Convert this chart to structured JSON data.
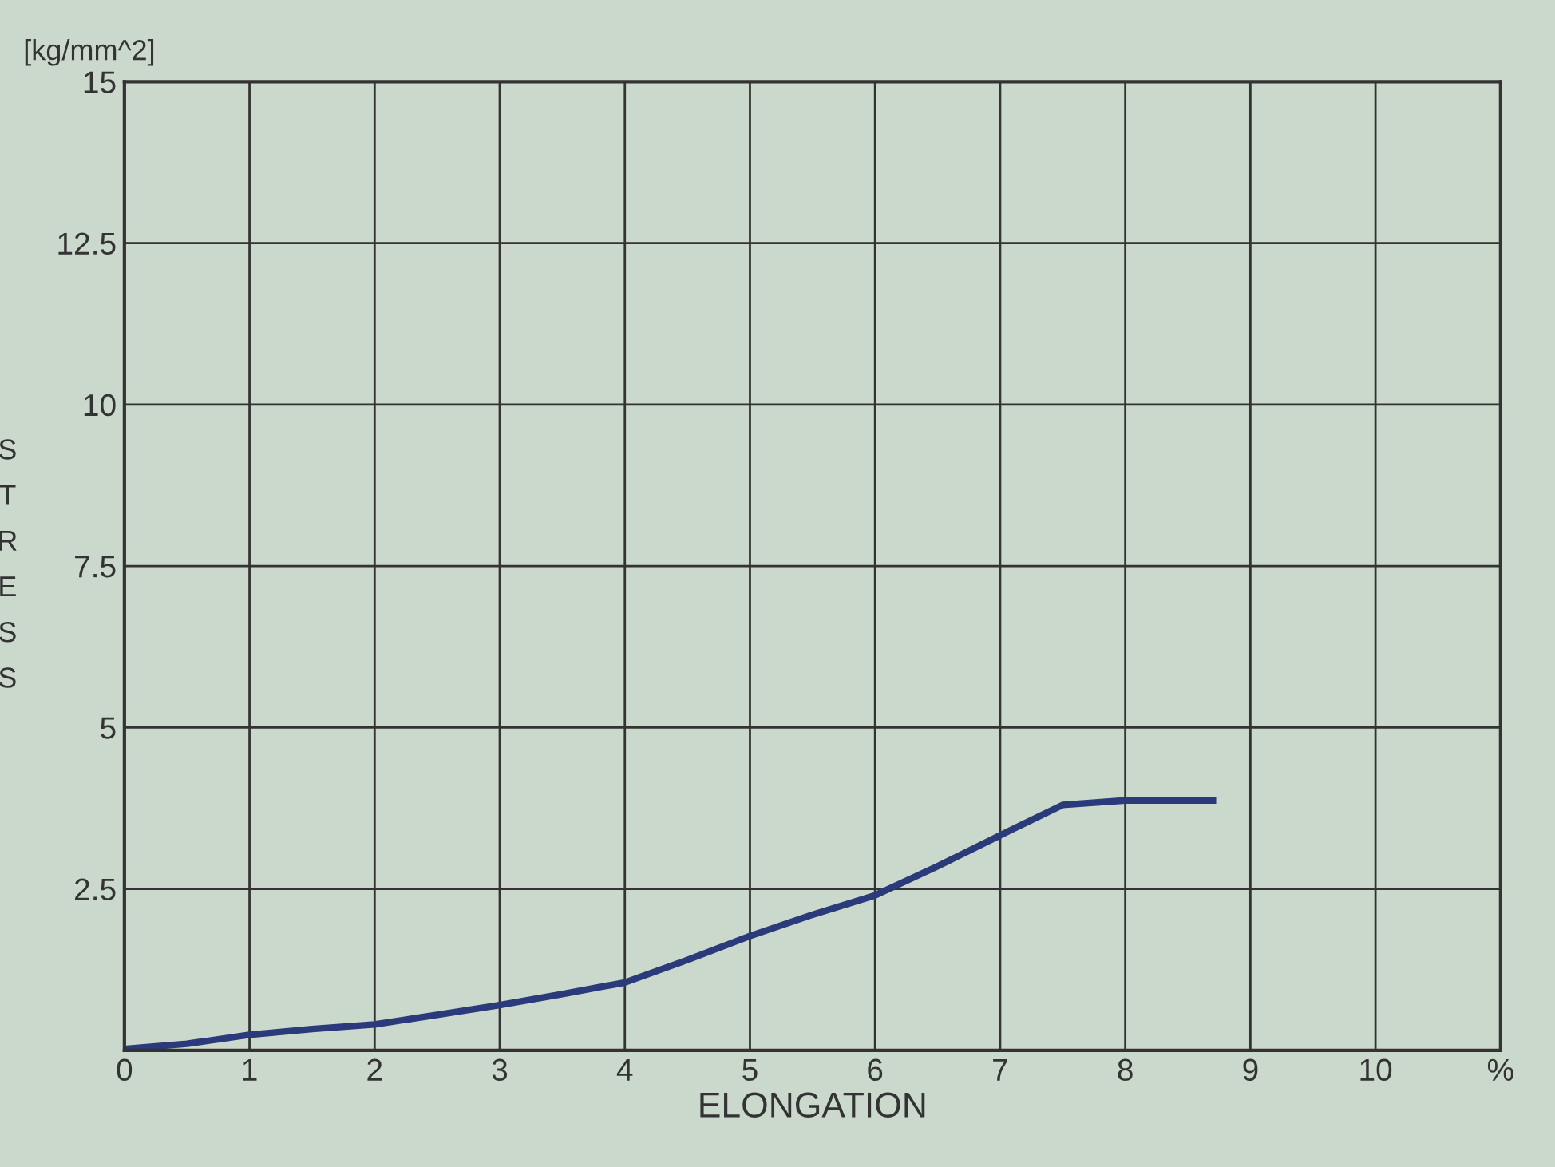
{
  "chart_data": {
    "type": "line",
    "xlabel": "ELONGATION",
    "ylabel": "STRESS",
    "annotations": [
      "[kg/mm^2]"
    ],
    "x": [
      0,
      0.5,
      1,
      1.5,
      2,
      2.5,
      3,
      3.5,
      4,
      4.5,
      5,
      5.5,
      6,
      6.5,
      7,
      7.5,
      8,
      8.7
    ],
    "series": [
      {
        "color": "#2b3a7a",
        "values": [
          0.02,
          0.1,
          0.24,
          0.33,
          0.4,
          0.55,
          0.7,
          0.87,
          1.05,
          1.4,
          1.77,
          2.1,
          2.4,
          2.85,
          3.33,
          3.8,
          3.87,
          3.87
        ]
      }
    ],
    "xlim": [
      0,
      11
    ],
    "ylim": [
      0,
      15
    ],
    "xticks": [
      0,
      1,
      2,
      3,
      4,
      5,
      6,
      7,
      8,
      9,
      10,
      {
        "value": 11,
        "label": "%"
      }
    ],
    "yticks": [
      {
        "value": 0,
        "label": null
      },
      2.5,
      5,
      7.5,
      10,
      12.5,
      15
    ],
    "grid": true,
    "marker": "none",
    "line_style": "solid"
  }
}
